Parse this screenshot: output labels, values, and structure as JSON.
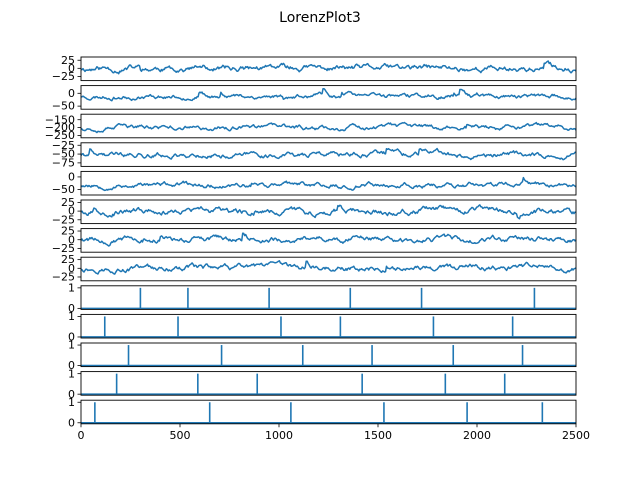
{
  "figure": {
    "title": "LorenzPlot3"
  },
  "colors": {
    "series": "#1f77b4",
    "axis": "#000000",
    "background": "#ffffff"
  },
  "chart_data": [
    {
      "type": "line",
      "panel": 1,
      "xlim": [
        0,
        2500
      ],
      "ylim": [
        -38,
        35
      ],
      "yticks": [
        -25,
        0,
        25
      ],
      "ytick_labels": [
        "−25",
        "0",
        "25"
      ],
      "generator": {
        "mean": 0,
        "amp": 14,
        "seed": 11
      },
      "spikes": []
    },
    {
      "type": "line",
      "panel": 2,
      "xlim": [
        0,
        2500
      ],
      "ylim": [
        -62,
        30
      ],
      "yticks": [
        -50,
        0
      ],
      "ytick_labels": [
        "−50",
        "0"
      ],
      "generator": {
        "mean": -12,
        "amp": 13,
        "seed": 23
      },
      "spikes": []
    },
    {
      "type": "line",
      "panel": 3,
      "xlim": [
        0,
        2500
      ],
      "ylim": [
        -265,
        -115
      ],
      "yticks": [
        -250,
        -200,
        -150
      ],
      "ytick_labels": [
        "−250",
        "−200",
        "−150"
      ],
      "generator": {
        "mean": -200,
        "amp": 22,
        "seed": 37
      },
      "spikes": []
    },
    {
      "type": "line",
      "panel": 4,
      "xlim": [
        0,
        2500
      ],
      "ylim": [
        -85,
        -18
      ],
      "yticks": [
        -75,
        -50,
        -25
      ],
      "ytick_labels": [
        "−75",
        "−50",
        "−25"
      ],
      "generator": {
        "mean": -52,
        "amp": 11,
        "seed": 41
      },
      "spikes": []
    },
    {
      "type": "line",
      "panel": 5,
      "xlim": [
        0,
        2500
      ],
      "ylim": [
        -72,
        22
      ],
      "yticks": [
        -50,
        0
      ],
      "ytick_labels": [
        "−50",
        "0"
      ],
      "generator": {
        "mean": -32,
        "amp": 14,
        "seed": 53
      },
      "spikes": []
    },
    {
      "type": "line",
      "panel": 6,
      "xlim": [
        0,
        2500
      ],
      "ylim": [
        -36,
        32
      ],
      "yticks": [
        -25,
        0,
        25
      ],
      "ytick_labels": [
        "−25",
        "0",
        "25"
      ],
      "generator": {
        "mean": 0,
        "amp": 13,
        "seed": 67
      },
      "spikes": []
    },
    {
      "type": "line",
      "panel": 7,
      "xlim": [
        0,
        2500
      ],
      "ylim": [
        -36,
        32
      ],
      "yticks": [
        -25,
        0,
        25
      ],
      "ytick_labels": [
        "−25",
        "0",
        "25"
      ],
      "generator": {
        "mean": 0,
        "amp": 12,
        "seed": 79
      },
      "spikes": []
    },
    {
      "type": "line",
      "panel": 8,
      "xlim": [
        0,
        2500
      ],
      "ylim": [
        -36,
        32
      ],
      "yticks": [
        -25,
        0,
        25
      ],
      "ytick_labels": [
        "−25",
        "0",
        "25"
      ],
      "generator": {
        "mean": 0,
        "amp": 12,
        "seed": 97
      },
      "spikes": []
    },
    {
      "type": "line",
      "panel": 9,
      "xlim": [
        0,
        2500
      ],
      "ylim": [
        -0.05,
        1.1
      ],
      "yticks": [
        0,
        1
      ],
      "ytick_labels": [
        "0",
        "1"
      ],
      "spikes": [
        300,
        540,
        950,
        1360,
        1720,
        2290
      ]
    },
    {
      "type": "line",
      "panel": 10,
      "xlim": [
        0,
        2500
      ],
      "ylim": [
        -0.05,
        1.1
      ],
      "yticks": [
        0,
        1
      ],
      "ytick_labels": [
        "0",
        "1"
      ],
      "spikes": [
        120,
        490,
        1010,
        1310,
        1780,
        2180
      ]
    },
    {
      "type": "line",
      "panel": 11,
      "xlim": [
        0,
        2500
      ],
      "ylim": [
        -0.05,
        1.1
      ],
      "yticks": [
        0,
        1
      ],
      "ytick_labels": [
        "0",
        "1"
      ],
      "spikes": [
        240,
        710,
        1120,
        1470,
        1880,
        2230
      ]
    },
    {
      "type": "line",
      "panel": 12,
      "xlim": [
        0,
        2500
      ],
      "ylim": [
        -0.05,
        1.1
      ],
      "yticks": [
        0,
        1
      ],
      "ytick_labels": [
        "0",
        "1"
      ],
      "spikes": [
        180,
        590,
        890,
        1420,
        1840,
        2140
      ]
    },
    {
      "type": "line",
      "panel": 13,
      "xlim": [
        0,
        2500
      ],
      "ylim": [
        -0.05,
        1.1
      ],
      "yticks": [
        0,
        1
      ],
      "ytick_labels": [
        "0",
        "1"
      ],
      "spikes": [
        70,
        650,
        1060,
        1530,
        1950,
        2330
      ],
      "xticks": [
        0,
        500,
        1000,
        1500,
        2000,
        2500
      ],
      "xtick_labels": [
        "0",
        "500",
        "1000",
        "1500",
        "2000",
        "2500"
      ]
    }
  ]
}
